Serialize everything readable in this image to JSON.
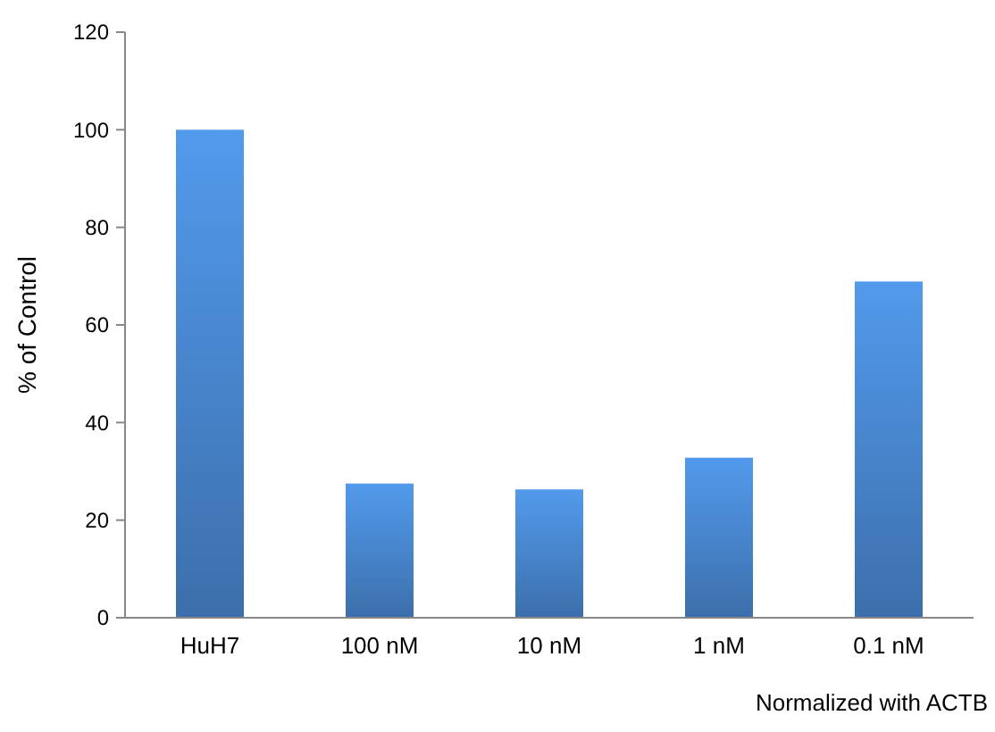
{
  "chart_data": {
    "type": "bar",
    "ylabel": "% of Control",
    "categories": [
      "HuH7",
      "100 nM",
      "10 nM",
      "1 nM",
      "0.1 nM"
    ],
    "values": [
      100,
      27.5,
      26.3,
      32.8,
      68.9
    ],
    "color": "#4a8ad4",
    "ylim": [
      0,
      120
    ],
    "yticks": [
      0,
      20,
      40,
      60,
      80,
      100,
      120
    ],
    "grid": false,
    "annotations": [
      "Normalized with ACTB"
    ]
  }
}
